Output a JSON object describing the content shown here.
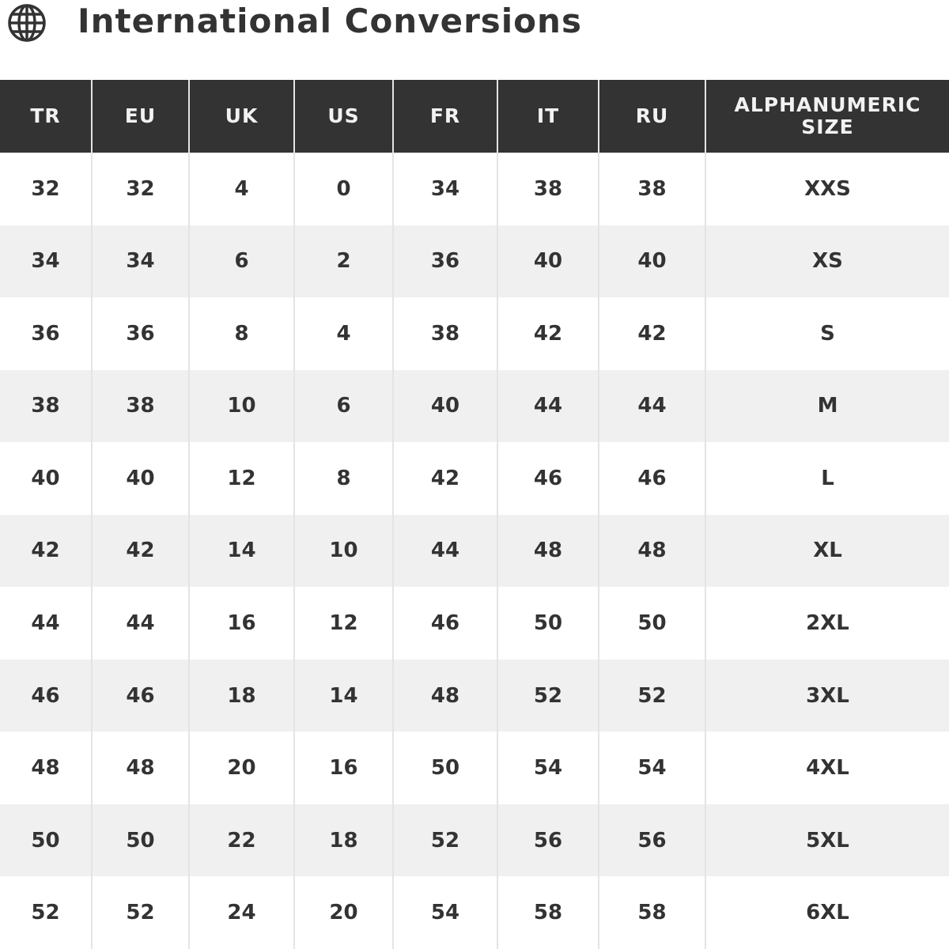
{
  "title": "International Conversions",
  "icon": "globe-icon",
  "colors": {
    "header_bg": "#333333",
    "header_text": "#f2f2f2",
    "row_alt": "#f0f0f0",
    "text": "#333333"
  },
  "columns": [
    "TR",
    "EU",
    "UK",
    "US",
    "FR",
    "IT",
    "RU",
    "ALPHANUMERIC SIZE"
  ],
  "rows": [
    [
      "32",
      "32",
      "4",
      "0",
      "34",
      "38",
      "38",
      "XXS"
    ],
    [
      "34",
      "34",
      "6",
      "2",
      "36",
      "40",
      "40",
      "XS"
    ],
    [
      "36",
      "36",
      "8",
      "4",
      "38",
      "42",
      "42",
      "S"
    ],
    [
      "38",
      "38",
      "10",
      "6",
      "40",
      "44",
      "44",
      "M"
    ],
    [
      "40",
      "40",
      "12",
      "8",
      "42",
      "46",
      "46",
      "L"
    ],
    [
      "42",
      "42",
      "14",
      "10",
      "44",
      "48",
      "48",
      "XL"
    ],
    [
      "44",
      "44",
      "16",
      "12",
      "46",
      "50",
      "50",
      "2XL"
    ],
    [
      "46",
      "46",
      "18",
      "14",
      "48",
      "52",
      "52",
      "3XL"
    ],
    [
      "48",
      "48",
      "20",
      "16",
      "50",
      "54",
      "54",
      "4XL"
    ],
    [
      "50",
      "50",
      "22",
      "18",
      "52",
      "56",
      "56",
      "5XL"
    ],
    [
      "52",
      "52",
      "24",
      "20",
      "54",
      "58",
      "58",
      "6XL"
    ]
  ]
}
